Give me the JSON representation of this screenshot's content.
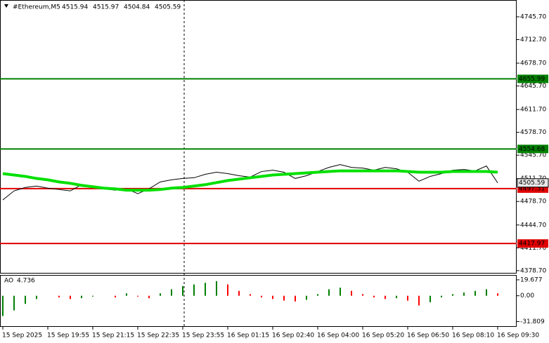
{
  "chart_data": [
    {
      "type": "line",
      "title": "#Ethereum,M5",
      "quote": [
        4515.94,
        4515.97,
        4504.84,
        4505.59
      ],
      "series": [
        {
          "color": "#000000",
          "values": [
            4481,
            4494,
            4499,
            4501,
            4498,
            4496,
            4494,
            4503,
            4499,
            4497,
            4495,
            4497,
            4490,
            4497,
            4507,
            4510,
            4512,
            4513,
            4518,
            4521,
            4519,
            4516,
            4514,
            4522,
            4524,
            4521,
            4512,
            4516,
            4522,
            4528,
            4532,
            4528,
            4527,
            4524,
            4528,
            4526,
            4521,
            4508,
            4515,
            4519,
            4524,
            4525,
            4523,
            4530,
            4505.59
          ]
        },
        {
          "color": "#00e000",
          "values": [
            4519,
            4517,
            4515,
            4512,
            4510,
            4507,
            4505,
            4502,
            4500,
            4498,
            4497,
            4495,
            4495,
            4495,
            4496,
            4498,
            4499,
            4501,
            4503,
            4506,
            4509,
            4511,
            4513,
            4515,
            4517,
            4518,
            4519,
            4520,
            4521,
            4522,
            4523,
            4523,
            4523,
            4523,
            4523,
            4523,
            4522,
            4521,
            4521,
            4521,
            4522,
            4522,
            4522,
            4522,
            4521
          ]
        }
      ],
      "ylim": [
        4374.5,
        4770
      ],
      "yticks": [
        {
          "value": 4745.7,
          "label": "4745.70"
        },
        {
          "value": 4712.7,
          "label": "4712.70"
        },
        {
          "value": 4678.7,
          "label": "4678.70"
        },
        {
          "value": 4645.7,
          "label": "4645.70"
        },
        {
          "value": 4611.7,
          "label": "4611.70"
        },
        {
          "value": 4578.7,
          "label": "4578.70"
        },
        {
          "value": 4545.7,
          "label": "4545.70"
        },
        {
          "value": 4511.7,
          "label": "4511.70"
        },
        {
          "value": 4478.7,
          "label": "4478.70"
        },
        {
          "value": 4444.7,
          "label": "4444.70"
        },
        {
          "value": 4411.7,
          "label": "4411.70"
        },
        {
          "value": 4378.7,
          "label": "4378.70"
        }
      ],
      "levels": [
        {
          "value": 4655.99,
          "color": "#008000"
        },
        {
          "value": 4554.68,
          "color": "#008000"
        },
        {
          "value": 4497.31,
          "color": "#e00000"
        },
        {
          "value": 4417.97,
          "color": "#e00000"
        }
      ],
      "last": 4505.59,
      "xticks": [
        {
          "value": 0,
          "label": "15 Sep 2025"
        },
        {
          "value": 4,
          "label": "15 Sep 19:55"
        },
        {
          "value": 8,
          "label": "15 Sep 21:15"
        },
        {
          "value": 12,
          "label": "15 Sep 22:35"
        },
        {
          "value": 16,
          "label": "15 Sep 23:55"
        },
        {
          "value": 20,
          "label": "16 Sep 01:15"
        },
        {
          "value": 24,
          "label": "16 Sep 02:40"
        },
        {
          "value": 28,
          "label": "16 Sep 04:00"
        },
        {
          "value": 32,
          "label": "16 Sep 05:20"
        },
        {
          "value": 36,
          "label": "16 Sep 06:50"
        },
        {
          "value": 40,
          "label": "16 Sep 08:10"
        },
        {
          "value": 44,
          "label": "16 Sep 09:30"
        }
      ],
      "vline": 16
    },
    {
      "type": "bar",
      "title": "AO",
      "value": 4.736,
      "values": [
        -25,
        -18,
        -10,
        -4,
        0,
        -2,
        -4,
        -3,
        -1,
        0,
        -2,
        3,
        -1,
        -3,
        3,
        8,
        12,
        14,
        16,
        18,
        14,
        6,
        2,
        -2,
        -4,
        -6,
        -7,
        -5,
        2,
        8,
        10,
        6,
        2,
        -2,
        -4,
        -3,
        -6,
        -12,
        -8,
        -2,
        2,
        4,
        6,
        8,
        3
      ],
      "up_color": "#008000",
      "down_color": "#ff0000",
      "ylim": [
        -37.5,
        24.8
      ],
      "yticks": [
        19.677,
        {
          "value": 0,
          "label": "0.00"
        },
        -31.809
      ]
    }
  ]
}
